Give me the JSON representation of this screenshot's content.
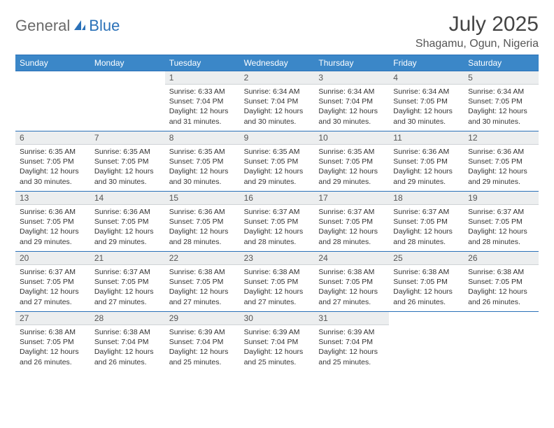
{
  "logo": {
    "general": "General",
    "blue": "Blue"
  },
  "title": "July 2025",
  "location": "Shagamu, Ogun, Nigeria",
  "colors": {
    "header_bg": "#3b87c8",
    "accent_border": "#2a71b8",
    "numrow_bg": "#eceeef",
    "text": "#333333",
    "title_text": "#444444",
    "logo_gray": "#6a6a6a",
    "logo_blue": "#2a71b8"
  },
  "weekdays": [
    "Sunday",
    "Monday",
    "Tuesday",
    "Wednesday",
    "Thursday",
    "Friday",
    "Saturday"
  ],
  "lead_blanks": 2,
  "days": [
    {
      "n": 1,
      "sr": "6:33 AM",
      "ss": "7:04 PM",
      "dl": "12 hours and 31 minutes."
    },
    {
      "n": 2,
      "sr": "6:34 AM",
      "ss": "7:04 PM",
      "dl": "12 hours and 30 minutes."
    },
    {
      "n": 3,
      "sr": "6:34 AM",
      "ss": "7:04 PM",
      "dl": "12 hours and 30 minutes."
    },
    {
      "n": 4,
      "sr": "6:34 AM",
      "ss": "7:05 PM",
      "dl": "12 hours and 30 minutes."
    },
    {
      "n": 5,
      "sr": "6:34 AM",
      "ss": "7:05 PM",
      "dl": "12 hours and 30 minutes."
    },
    {
      "n": 6,
      "sr": "6:35 AM",
      "ss": "7:05 PM",
      "dl": "12 hours and 30 minutes."
    },
    {
      "n": 7,
      "sr": "6:35 AM",
      "ss": "7:05 PM",
      "dl": "12 hours and 30 minutes."
    },
    {
      "n": 8,
      "sr": "6:35 AM",
      "ss": "7:05 PM",
      "dl": "12 hours and 30 minutes."
    },
    {
      "n": 9,
      "sr": "6:35 AM",
      "ss": "7:05 PM",
      "dl": "12 hours and 29 minutes."
    },
    {
      "n": 10,
      "sr": "6:35 AM",
      "ss": "7:05 PM",
      "dl": "12 hours and 29 minutes."
    },
    {
      "n": 11,
      "sr": "6:36 AM",
      "ss": "7:05 PM",
      "dl": "12 hours and 29 minutes."
    },
    {
      "n": 12,
      "sr": "6:36 AM",
      "ss": "7:05 PM",
      "dl": "12 hours and 29 minutes."
    },
    {
      "n": 13,
      "sr": "6:36 AM",
      "ss": "7:05 PM",
      "dl": "12 hours and 29 minutes."
    },
    {
      "n": 14,
      "sr": "6:36 AM",
      "ss": "7:05 PM",
      "dl": "12 hours and 29 minutes."
    },
    {
      "n": 15,
      "sr": "6:36 AM",
      "ss": "7:05 PM",
      "dl": "12 hours and 28 minutes."
    },
    {
      "n": 16,
      "sr": "6:37 AM",
      "ss": "7:05 PM",
      "dl": "12 hours and 28 minutes."
    },
    {
      "n": 17,
      "sr": "6:37 AM",
      "ss": "7:05 PM",
      "dl": "12 hours and 28 minutes."
    },
    {
      "n": 18,
      "sr": "6:37 AM",
      "ss": "7:05 PM",
      "dl": "12 hours and 28 minutes."
    },
    {
      "n": 19,
      "sr": "6:37 AM",
      "ss": "7:05 PM",
      "dl": "12 hours and 28 minutes."
    },
    {
      "n": 20,
      "sr": "6:37 AM",
      "ss": "7:05 PM",
      "dl": "12 hours and 27 minutes."
    },
    {
      "n": 21,
      "sr": "6:37 AM",
      "ss": "7:05 PM",
      "dl": "12 hours and 27 minutes."
    },
    {
      "n": 22,
      "sr": "6:38 AM",
      "ss": "7:05 PM",
      "dl": "12 hours and 27 minutes."
    },
    {
      "n": 23,
      "sr": "6:38 AM",
      "ss": "7:05 PM",
      "dl": "12 hours and 27 minutes."
    },
    {
      "n": 24,
      "sr": "6:38 AM",
      "ss": "7:05 PM",
      "dl": "12 hours and 27 minutes."
    },
    {
      "n": 25,
      "sr": "6:38 AM",
      "ss": "7:05 PM",
      "dl": "12 hours and 26 minutes."
    },
    {
      "n": 26,
      "sr": "6:38 AM",
      "ss": "7:05 PM",
      "dl": "12 hours and 26 minutes."
    },
    {
      "n": 27,
      "sr": "6:38 AM",
      "ss": "7:05 PM",
      "dl": "12 hours and 26 minutes."
    },
    {
      "n": 28,
      "sr": "6:38 AM",
      "ss": "7:04 PM",
      "dl": "12 hours and 26 minutes."
    },
    {
      "n": 29,
      "sr": "6:39 AM",
      "ss": "7:04 PM",
      "dl": "12 hours and 25 minutes."
    },
    {
      "n": 30,
      "sr": "6:39 AM",
      "ss": "7:04 PM",
      "dl": "12 hours and 25 minutes."
    },
    {
      "n": 31,
      "sr": "6:39 AM",
      "ss": "7:04 PM",
      "dl": "12 hours and 25 minutes."
    }
  ],
  "labels": {
    "sunrise": "Sunrise:",
    "sunset": "Sunset:",
    "daylight": "Daylight:"
  },
  "typography": {
    "title_fontsize": 30,
    "location_fontsize": 16,
    "header_fontsize": 12,
    "cell_fontsize": 10.5
  }
}
